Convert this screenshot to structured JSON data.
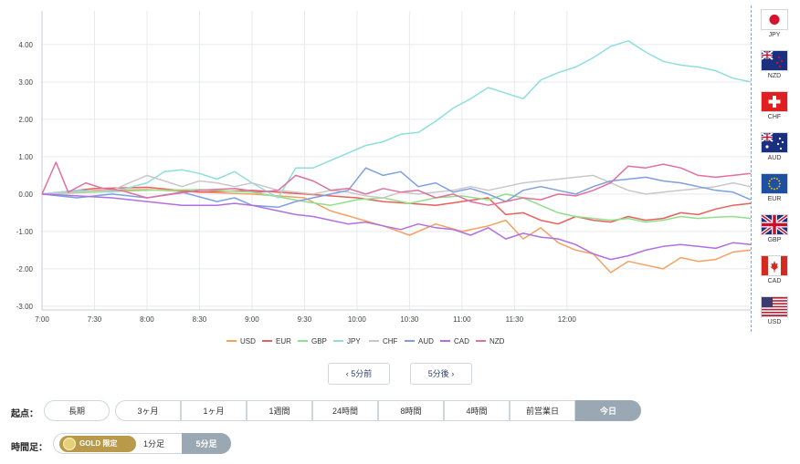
{
  "chart_data": {
    "type": "line",
    "title": "",
    "xlabel": "",
    "ylabel": "",
    "ylim": [
      -3.1,
      4.9
    ],
    "yticks": [
      "4.00",
      "3.00",
      "2.00",
      "1.00",
      "0.00",
      "-1.00",
      "-2.00",
      "-3.00"
    ],
    "ytick_values": [
      4,
      3,
      2,
      1,
      0,
      -1,
      -2,
      -3
    ],
    "xticks": [
      "7:00",
      "7:30",
      "8:00",
      "8:30",
      "9:00",
      "9:30",
      "10:00",
      "10:30",
      "11:00",
      "11:30",
      "12:00"
    ],
    "x_range_minutes": [
      0,
      300
    ],
    "grid": true,
    "legend_position": "bottom",
    "series": [
      {
        "name": "USD",
        "color": "#f4a160",
        "points": [
          [
            0,
            0
          ],
          [
            30,
            0.1
          ],
          [
            60,
            0.12
          ],
          [
            90,
            0.05
          ],
          [
            120,
            0
          ],
          [
            150,
            -0.1
          ],
          [
            165,
            -0.45
          ],
          [
            180,
            -0.65
          ],
          [
            195,
            -0.85
          ],
          [
            210,
            -1.1
          ],
          [
            225,
            -0.8
          ],
          [
            240,
            -1.0
          ],
          [
            255,
            -0.85
          ],
          [
            265,
            -0.7
          ],
          [
            275,
            -1.2
          ],
          [
            285,
            -0.9
          ],
          [
            295,
            -1.3
          ],
          [
            305,
            -1.5
          ],
          [
            315,
            -1.6
          ],
          [
            325,
            -2.1
          ],
          [
            335,
            -1.8
          ],
          [
            345,
            -1.9
          ],
          [
            355,
            -2.0
          ],
          [
            365,
            -1.7
          ],
          [
            375,
            -1.8
          ],
          [
            385,
            -1.75
          ],
          [
            395,
            -1.55
          ],
          [
            405,
            -1.5
          ]
        ]
      },
      {
        "name": "EUR",
        "color": "#e8605a",
        "points": [
          [
            0,
            0
          ],
          [
            30,
            0.15
          ],
          [
            60,
            0.18
          ],
          [
            90,
            0.05
          ],
          [
            120,
            0.1
          ],
          [
            150,
            0
          ],
          [
            165,
            -0.05
          ],
          [
            180,
            -0.1
          ],
          [
            195,
            -0.2
          ],
          [
            210,
            -0.25
          ],
          [
            225,
            -0.3
          ],
          [
            240,
            -0.2
          ],
          [
            255,
            -0.1
          ],
          [
            265,
            -0.55
          ],
          [
            275,
            -0.5
          ],
          [
            285,
            -0.7
          ],
          [
            295,
            -0.8
          ],
          [
            305,
            -0.6
          ],
          [
            315,
            -0.7
          ],
          [
            325,
            -0.75
          ],
          [
            335,
            -0.6
          ],
          [
            345,
            -0.7
          ],
          [
            355,
            -0.65
          ],
          [
            365,
            -0.5
          ],
          [
            375,
            -0.55
          ],
          [
            385,
            -0.4
          ],
          [
            395,
            -0.3
          ],
          [
            405,
            -0.25
          ]
        ]
      },
      {
        "name": "GBP",
        "color": "#8fe08a",
        "points": [
          [
            0,
            0
          ],
          [
            30,
            0.05
          ],
          [
            60,
            0.1
          ],
          [
            90,
            0.12
          ],
          [
            120,
            0.05
          ],
          [
            150,
            -0.2
          ],
          [
            165,
            -0.3
          ],
          [
            180,
            -0.15
          ],
          [
            195,
            -0.1
          ],
          [
            210,
            -0.25
          ],
          [
            225,
            -0.1
          ],
          [
            240,
            -0.05
          ],
          [
            255,
            -0.15
          ],
          [
            265,
            0
          ],
          [
            275,
            -0.1
          ],
          [
            285,
            -0.3
          ],
          [
            295,
            -0.5
          ],
          [
            305,
            -0.6
          ],
          [
            315,
            -0.65
          ],
          [
            325,
            -0.7
          ],
          [
            335,
            -0.65
          ],
          [
            345,
            -0.75
          ],
          [
            355,
            -0.7
          ],
          [
            365,
            -0.6
          ],
          [
            375,
            -0.65
          ],
          [
            385,
            -0.62
          ],
          [
            395,
            -0.6
          ],
          [
            405,
            -0.65
          ]
        ]
      },
      {
        "name": "JPY",
        "color": "#8fdede",
        "points": [
          [
            0,
            0
          ],
          [
            20,
            0.1
          ],
          [
            40,
            0.05
          ],
          [
            60,
            0.3
          ],
          [
            70,
            0.6
          ],
          [
            80,
            0.65
          ],
          [
            90,
            0.55
          ],
          [
            100,
            0.4
          ],
          [
            110,
            0.6
          ],
          [
            120,
            0.3
          ],
          [
            135,
            -0.1
          ],
          [
            145,
            0.7
          ],
          [
            155,
            0.7
          ],
          [
            165,
            0.9
          ],
          [
            175,
            1.1
          ],
          [
            185,
            1.3
          ],
          [
            195,
            1.4
          ],
          [
            205,
            1.6
          ],
          [
            215,
            1.65
          ],
          [
            225,
            1.95
          ],
          [
            235,
            2.3
          ],
          [
            245,
            2.55
          ],
          [
            255,
            2.85
          ],
          [
            265,
            2.7
          ],
          [
            275,
            2.55
          ],
          [
            285,
            3.05
          ],
          [
            295,
            3.25
          ],
          [
            305,
            3.4
          ],
          [
            315,
            3.65
          ],
          [
            325,
            3.95
          ],
          [
            335,
            4.1
          ],
          [
            345,
            3.8
          ],
          [
            355,
            3.55
          ],
          [
            365,
            3.45
          ],
          [
            375,
            3.4
          ],
          [
            385,
            3.3
          ],
          [
            395,
            3.1
          ],
          [
            405,
            3.0
          ]
        ]
      },
      {
        "name": "CHF",
        "color": "#c8c8c8",
        "points": [
          [
            0,
            0
          ],
          [
            20,
            0.05
          ],
          [
            40,
            0.1
          ],
          [
            50,
            0.3
          ],
          [
            60,
            0.5
          ],
          [
            70,
            0.35
          ],
          [
            80,
            0.2
          ],
          [
            90,
            0.35
          ],
          [
            100,
            0.3
          ],
          [
            110,
            0.2
          ],
          [
            120,
            0.3
          ],
          [
            135,
            0.1
          ],
          [
            145,
            0.05
          ],
          [
            155,
            0
          ],
          [
            165,
            0.1
          ],
          [
            175,
            0.05
          ],
          [
            185,
            -0.05
          ],
          [
            195,
            -0.1
          ],
          [
            205,
            0.05
          ],
          [
            215,
            0
          ],
          [
            225,
            0.05
          ],
          [
            235,
            0.1
          ],
          [
            245,
            0.2
          ],
          [
            255,
            0.1
          ],
          [
            265,
            0.2
          ],
          [
            275,
            0.3
          ],
          [
            285,
            0.35
          ],
          [
            295,
            0.4
          ],
          [
            305,
            0.45
          ],
          [
            315,
            0.5
          ],
          [
            325,
            0.3
          ],
          [
            335,
            0.1
          ],
          [
            345,
            0
          ],
          [
            355,
            0.05
          ],
          [
            365,
            0.1
          ],
          [
            375,
            0.15
          ],
          [
            385,
            0.2
          ],
          [
            395,
            0.3
          ],
          [
            405,
            0.2
          ]
        ]
      },
      {
        "name": "AUD",
        "color": "#7f9fdf",
        "points": [
          [
            0,
            0
          ],
          [
            20,
            -0.1
          ],
          [
            40,
            0
          ],
          [
            60,
            -0.1
          ],
          [
            80,
            0.05
          ],
          [
            100,
            -0.2
          ],
          [
            110,
            -0.1
          ],
          [
            120,
            -0.3
          ],
          [
            135,
            -0.35
          ],
          [
            145,
            -0.2
          ],
          [
            155,
            -0.1
          ],
          [
            165,
            0
          ],
          [
            175,
            0.1
          ],
          [
            185,
            0.7
          ],
          [
            195,
            0.5
          ],
          [
            205,
            0.6
          ],
          [
            215,
            0.2
          ],
          [
            225,
            0.3
          ],
          [
            235,
            0.05
          ],
          [
            245,
            0.15
          ],
          [
            255,
            0
          ],
          [
            265,
            -0.2
          ],
          [
            275,
            0.1
          ],
          [
            285,
            0.2
          ],
          [
            295,
            0.1
          ],
          [
            305,
            0
          ],
          [
            315,
            0.2
          ],
          [
            325,
            0.35
          ],
          [
            335,
            0.4
          ],
          [
            345,
            0.45
          ],
          [
            355,
            0.35
          ],
          [
            365,
            0.3
          ],
          [
            375,
            0.2
          ],
          [
            385,
            0.1
          ],
          [
            395,
            0.05
          ],
          [
            405,
            -0.15
          ]
        ]
      },
      {
        "name": "CAD",
        "color": "#b070e0",
        "points": [
          [
            0,
            0
          ],
          [
            20,
            -0.05
          ],
          [
            40,
            -0.1
          ],
          [
            60,
            -0.2
          ],
          [
            80,
            -0.3
          ],
          [
            100,
            -0.3
          ],
          [
            110,
            -0.25
          ],
          [
            120,
            -0.3
          ],
          [
            135,
            -0.45
          ],
          [
            145,
            -0.55
          ],
          [
            155,
            -0.6
          ],
          [
            165,
            -0.7
          ],
          [
            175,
            -0.8
          ],
          [
            185,
            -0.75
          ],
          [
            195,
            -0.85
          ],
          [
            205,
            -0.95
          ],
          [
            215,
            -0.8
          ],
          [
            225,
            -0.9
          ],
          [
            235,
            -0.95
          ],
          [
            245,
            -1.1
          ],
          [
            255,
            -0.9
          ],
          [
            265,
            -1.2
          ],
          [
            275,
            -1.05
          ],
          [
            285,
            -1.15
          ],
          [
            295,
            -1.2
          ],
          [
            305,
            -1.35
          ],
          [
            315,
            -1.6
          ],
          [
            325,
            -1.75
          ],
          [
            335,
            -1.65
          ],
          [
            345,
            -1.5
          ],
          [
            355,
            -1.4
          ],
          [
            365,
            -1.35
          ],
          [
            375,
            -1.4
          ],
          [
            385,
            -1.45
          ],
          [
            395,
            -1.3
          ],
          [
            405,
            -1.35
          ]
        ]
      },
      {
        "name": "NZD",
        "color": "#e070a0",
        "points": [
          [
            0,
            0
          ],
          [
            8,
            0.85
          ],
          [
            15,
            0.05
          ],
          [
            25,
            0.3
          ],
          [
            35,
            0.15
          ],
          [
            45,
            0.1
          ],
          [
            60,
            -0.1
          ],
          [
            75,
            0
          ],
          [
            90,
            0.1
          ],
          [
            110,
            0.15
          ],
          [
            125,
            0.05
          ],
          [
            135,
            0.1
          ],
          [
            145,
            0.5
          ],
          [
            155,
            0.35
          ],
          [
            165,
            0.1
          ],
          [
            175,
            0.15
          ],
          [
            185,
            0
          ],
          [
            195,
            0.15
          ],
          [
            205,
            0.05
          ],
          [
            215,
            0.1
          ],
          [
            225,
            -0.1
          ],
          [
            235,
            0
          ],
          [
            245,
            -0.2
          ],
          [
            255,
            -0.3
          ],
          [
            265,
            -0.2
          ],
          [
            275,
            -0.1
          ],
          [
            285,
            -0.15
          ],
          [
            295,
            0
          ],
          [
            305,
            -0.05
          ],
          [
            315,
            0.1
          ],
          [
            325,
            0.3
          ],
          [
            335,
            0.75
          ],
          [
            345,
            0.7
          ],
          [
            355,
            0.8
          ],
          [
            365,
            0.7
          ],
          [
            375,
            0.5
          ],
          [
            385,
            0.45
          ],
          [
            395,
            0.5
          ],
          [
            405,
            0.55
          ]
        ]
      }
    ]
  },
  "currency_panel": [
    {
      "code": "JPY",
      "flag": "japan-flag"
    },
    {
      "code": "NZD",
      "flag": "new-zealand-flag"
    },
    {
      "code": "CHF",
      "flag": "switzerland-flag"
    },
    {
      "code": "AUD",
      "flag": "australia-flag"
    },
    {
      "code": "EUR",
      "flag": "eu-flag"
    },
    {
      "code": "GBP",
      "flag": "uk-flag"
    },
    {
      "code": "CAD",
      "flag": "canada-flag"
    },
    {
      "code": "USD",
      "flag": "usa-flag"
    }
  ],
  "nav": {
    "prev_label": "‹ 5分前",
    "next_label": "5分後 ›"
  },
  "start_point": {
    "label": "起点：",
    "options": [
      "長期",
      "3ヶ月",
      "1ヶ月",
      "1週間",
      "24時間",
      "8時間",
      "4時間",
      "前営業日",
      "今日"
    ],
    "selected": "今日"
  },
  "timeframe": {
    "label": "時間足：",
    "gold_badge": "GOLD 限定",
    "options": [
      "1分足",
      "5分足"
    ],
    "selected": "5分足"
  }
}
